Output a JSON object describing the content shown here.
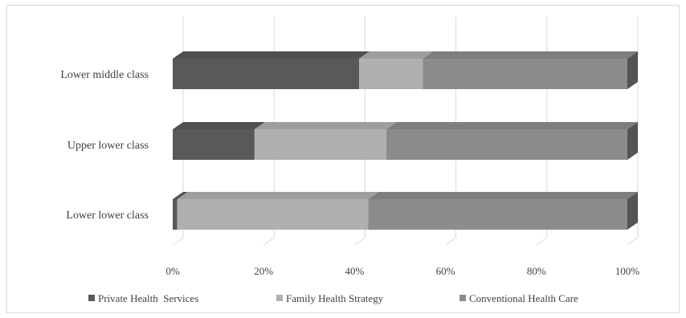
{
  "chart_data": {
    "type": "bar",
    "orientation": "horizontal",
    "stacked": "percent",
    "three_d": true,
    "categories": [
      "Lower lower class",
      "Upper lower class",
      "Lower middle class"
    ],
    "series": [
      {
        "name": "Private Health  Services",
        "color": "#595959",
        "values": [
          1,
          18,
          41
        ]
      },
      {
        "name": "Family Health Strategy",
        "color": "#b0b0b0",
        "values": [
          42,
          29,
          14
        ]
      },
      {
        "name": "Conventional Health Care",
        "color": "#8c8c8c",
        "values": [
          57,
          53,
          45
        ]
      }
    ],
    "x_ticks": [
      "0%",
      "20%",
      "40%",
      "60%",
      "80%",
      "100%"
    ],
    "xlim": [
      0,
      100
    ],
    "grid": true,
    "legend_position": "bottom"
  }
}
